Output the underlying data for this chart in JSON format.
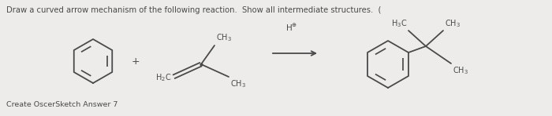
{
  "title_text": "Draw a curved arrow mechanism of the following reaction.  Show all intermediate structures.  (",
  "footer_text": "Create OscerSketch Answer 7",
  "bg_color": "#edecea",
  "text_color": "#4a4a4a",
  "title_fontsize": 7.2,
  "footer_fontsize": 6.8
}
